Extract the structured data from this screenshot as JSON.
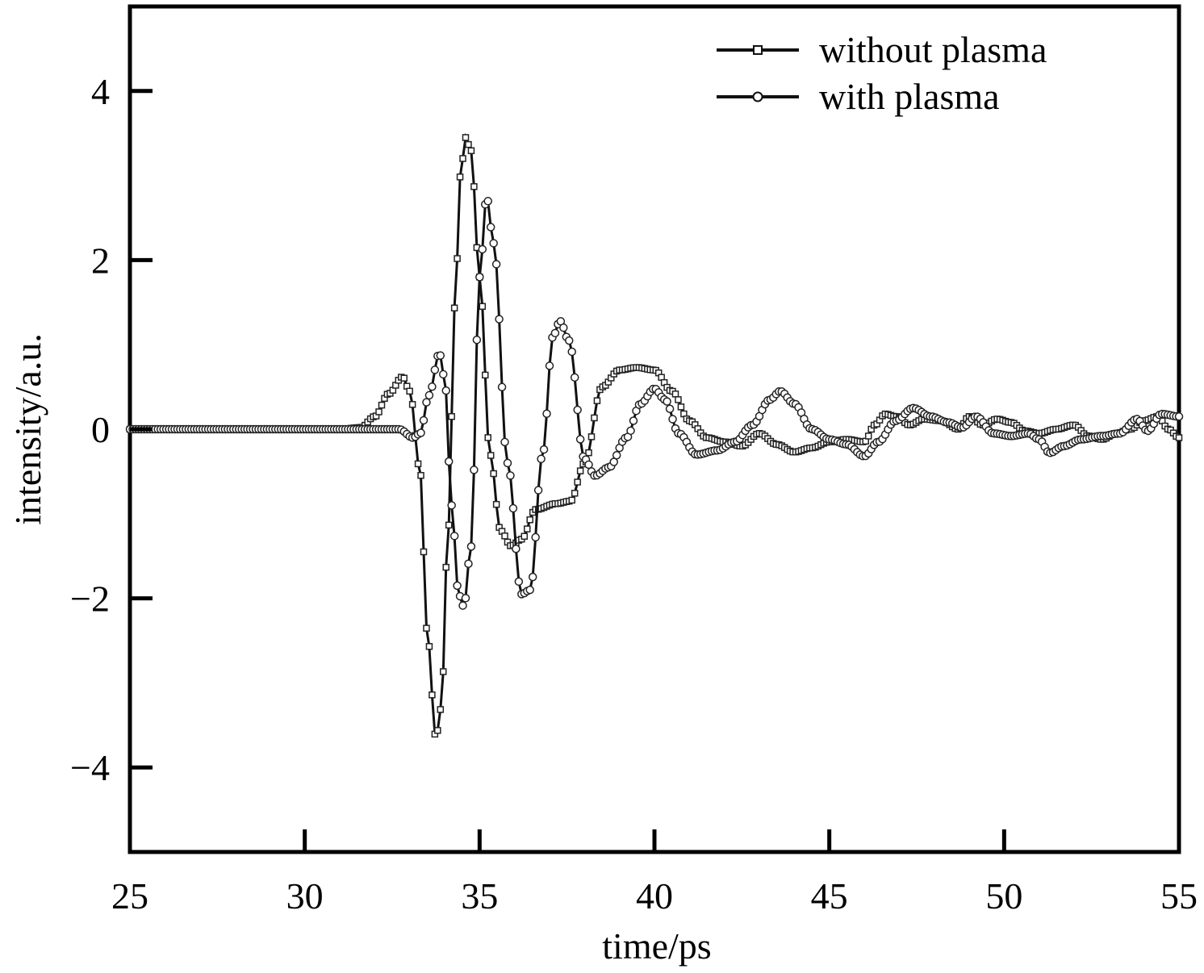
{
  "chart_data": {
    "type": "line",
    "xlabel": "time/ps",
    "ylabel": "intensity/a.u.",
    "xlim": [
      25,
      55
    ],
    "ylim": [
      -5,
      5
    ],
    "xticks": [
      25,
      30,
      35,
      40,
      45,
      50,
      55
    ],
    "yticks": [
      4,
      2,
      0,
      -2,
      -4
    ],
    "ytick_labels": [
      "4",
      "2",
      "0",
      "−2",
      "−4"
    ],
    "grid": false,
    "legend_position": "top-right",
    "series": [
      {
        "name": "without plasma",
        "marker": "square",
        "color": "#111111",
        "points": [
          [
            25.0,
            0.0
          ],
          [
            31.0,
            0.0
          ],
          [
            31.6,
            0.02
          ],
          [
            32.0,
            0.15
          ],
          [
            32.4,
            0.42
          ],
          [
            32.8,
            0.62
          ],
          [
            33.0,
            0.45
          ],
          [
            33.3,
            -0.5
          ],
          [
            33.5,
            -2.4
          ],
          [
            33.75,
            -3.65
          ],
          [
            33.9,
            -3.3
          ],
          [
            34.1,
            -1.2
          ],
          [
            34.3,
            1.5
          ],
          [
            34.45,
            3.0
          ],
          [
            34.6,
            3.45
          ],
          [
            34.75,
            3.3
          ],
          [
            35.0,
            1.8
          ],
          [
            35.3,
            -0.3
          ],
          [
            35.6,
            -1.2
          ],
          [
            35.9,
            -1.38
          ],
          [
            36.2,
            -1.3
          ],
          [
            36.6,
            -0.95
          ],
          [
            37.2,
            -0.88
          ],
          [
            37.6,
            -0.85
          ],
          [
            38.0,
            -0.4
          ],
          [
            38.5,
            0.5
          ],
          [
            39.0,
            0.7
          ],
          [
            39.5,
            0.73
          ],
          [
            40.0,
            0.7
          ],
          [
            40.5,
            0.45
          ],
          [
            41.0,
            0.1
          ],
          [
            41.5,
            -0.1
          ],
          [
            42.0,
            -0.15
          ],
          [
            42.5,
            -0.2
          ],
          [
            43.0,
            -0.05
          ],
          [
            43.5,
            -0.18
          ],
          [
            44.0,
            -0.27
          ],
          [
            44.5,
            -0.22
          ],
          [
            45.0,
            -0.15
          ],
          [
            45.5,
            -0.12
          ],
          [
            46.0,
            -0.15
          ],
          [
            46.3,
            0.05
          ],
          [
            46.6,
            0.18
          ],
          [
            46.9,
            0.15
          ],
          [
            47.3,
            0.05
          ],
          [
            47.7,
            0.12
          ],
          [
            48.2,
            0.1
          ],
          [
            48.7,
            0.0
          ],
          [
            49.0,
            0.15
          ],
          [
            49.4,
            0.05
          ],
          [
            49.8,
            0.12
          ],
          [
            50.2,
            0.08
          ],
          [
            50.6,
            -0.02
          ],
          [
            51.0,
            -0.05
          ],
          [
            51.5,
            0.0
          ],
          [
            52.0,
            0.05
          ],
          [
            52.4,
            -0.08
          ],
          [
            52.8,
            -0.12
          ],
          [
            53.2,
            -0.05
          ],
          [
            53.6,
            0.0
          ],
          [
            54.0,
            0.1
          ],
          [
            54.4,
            0.15
          ],
          [
            54.7,
            0.0
          ],
          [
            55.0,
            -0.1
          ]
        ]
      },
      {
        "name": "with plasma",
        "marker": "circle",
        "color": "#111111",
        "points": [
          [
            25.0,
            0.0
          ],
          [
            32.0,
            0.0
          ],
          [
            32.7,
            0.0
          ],
          [
            33.1,
            -0.1
          ],
          [
            33.3,
            -0.05
          ],
          [
            33.55,
            0.4
          ],
          [
            33.85,
            0.9
          ],
          [
            34.0,
            0.6
          ],
          [
            34.2,
            -0.9
          ],
          [
            34.4,
            -1.95
          ],
          [
            34.55,
            -2.1
          ],
          [
            34.75,
            -1.4
          ],
          [
            35.0,
            1.8
          ],
          [
            35.2,
            2.75
          ],
          [
            35.4,
            2.2
          ],
          [
            35.8,
            -0.4
          ],
          [
            36.2,
            -1.95
          ],
          [
            36.45,
            -1.9
          ],
          [
            36.8,
            -0.3
          ],
          [
            37.1,
            1.1
          ],
          [
            37.3,
            1.28
          ],
          [
            37.55,
            1.05
          ],
          [
            38.0,
            -0.35
          ],
          [
            38.3,
            -0.55
          ],
          [
            38.7,
            -0.45
          ],
          [
            39.2,
            -0.1
          ],
          [
            39.6,
            0.3
          ],
          [
            40.0,
            0.48
          ],
          [
            40.3,
            0.35
          ],
          [
            40.7,
            -0.05
          ],
          [
            41.2,
            -0.3
          ],
          [
            41.8,
            -0.25
          ],
          [
            42.3,
            -0.15
          ],
          [
            42.8,
            0.05
          ],
          [
            43.3,
            0.35
          ],
          [
            43.6,
            0.45
          ],
          [
            44.0,
            0.3
          ],
          [
            44.5,
            0.0
          ],
          [
            45.0,
            -0.12
          ],
          [
            45.5,
            -0.18
          ],
          [
            46.0,
            -0.32
          ],
          [
            46.4,
            -0.15
          ],
          [
            46.9,
            0.1
          ],
          [
            47.4,
            0.25
          ],
          [
            47.9,
            0.15
          ],
          [
            48.4,
            0.08
          ],
          [
            48.8,
            0.02
          ],
          [
            49.2,
            0.15
          ],
          [
            49.7,
            -0.05
          ],
          [
            50.2,
            -0.08
          ],
          [
            50.7,
            -0.05
          ],
          [
            51.0,
            -0.12
          ],
          [
            51.3,
            -0.28
          ],
          [
            51.7,
            -0.2
          ],
          [
            52.2,
            -0.12
          ],
          [
            52.8,
            -0.08
          ],
          [
            53.3,
            -0.05
          ],
          [
            53.8,
            0.12
          ],
          [
            54.1,
            -0.02
          ],
          [
            54.5,
            0.18
          ],
          [
            55.0,
            0.15
          ]
        ]
      }
    ]
  }
}
